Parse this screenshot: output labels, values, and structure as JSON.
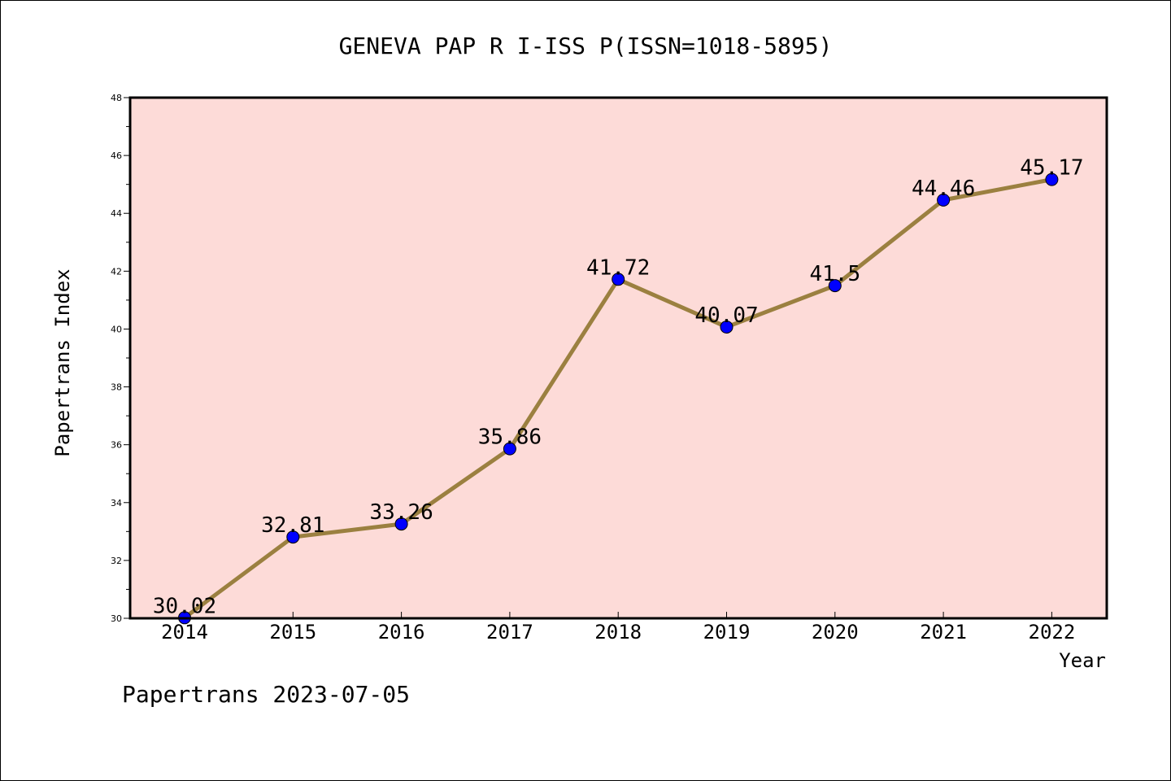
{
  "chart_data": {
    "type": "line",
    "title": "GENEVA PAP R I-ISS P(ISSN=1018-5895)",
    "xlabel": "Year",
    "ylabel": "Papertrans Index",
    "categories": [
      "2014",
      "2015",
      "2016",
      "2017",
      "2018",
      "2019",
      "2020",
      "2021",
      "2022"
    ],
    "series": [
      {
        "values": [
          30.02,
          32.81,
          33.26,
          35.86,
          41.72,
          40.07,
          41.5,
          44.46,
          45.17
        ],
        "data_labels": [
          "30.02",
          "32.81",
          "33.26",
          "35.86",
          "41.72",
          "40.07",
          "41.5",
          "44.46",
          "45.17"
        ],
        "line_color": "#9b8040",
        "marker_color": "#0000ff"
      }
    ],
    "ylim": [
      30,
      48
    ],
    "yticks": [
      "30",
      "32",
      "34",
      "36",
      "38",
      "40",
      "42",
      "44",
      "46",
      "48"
    ],
    "grid": false,
    "legend": "none",
    "plot_background": "#fddbd8"
  },
  "footer": "Papertrans 2023-07-05"
}
